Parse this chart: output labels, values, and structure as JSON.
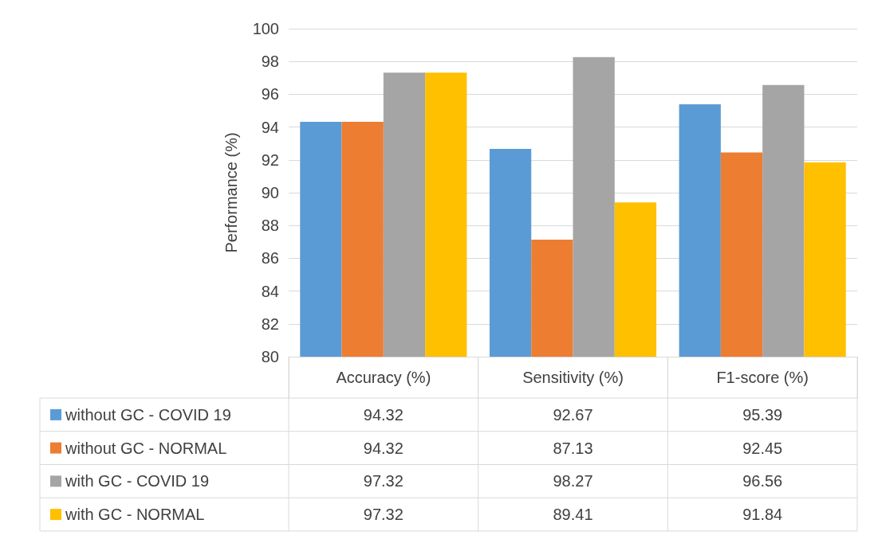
{
  "chart_data": {
    "type": "bar",
    "ylabel": "Performance (%)",
    "categories": [
      "Accuracy (%)",
      "Sensitivity (%)",
      "F1-score (%)"
    ],
    "series": [
      {
        "name": "without GC - COVID 19",
        "color": "#5b9bd5",
        "values": [
          94.32,
          92.67,
          95.39
        ]
      },
      {
        "name": "without GC - NORMAL",
        "color": "#ed7d31",
        "values": [
          94.32,
          87.13,
          92.45
        ]
      },
      {
        "name": "with GC - COVID 19",
        "color": "#a5a5a5",
        "values": [
          97.32,
          98.27,
          96.56
        ]
      },
      {
        "name": "with GC - NORMAL",
        "color": "#ffc000",
        "values": [
          97.32,
          89.41,
          91.84
        ]
      }
    ],
    "ylim": [
      80,
      100
    ],
    "yticks": [
      80,
      82,
      84,
      86,
      88,
      90,
      92,
      94,
      96,
      98,
      100
    ],
    "grid": "y",
    "legend": "bottom",
    "data_labels": true
  }
}
